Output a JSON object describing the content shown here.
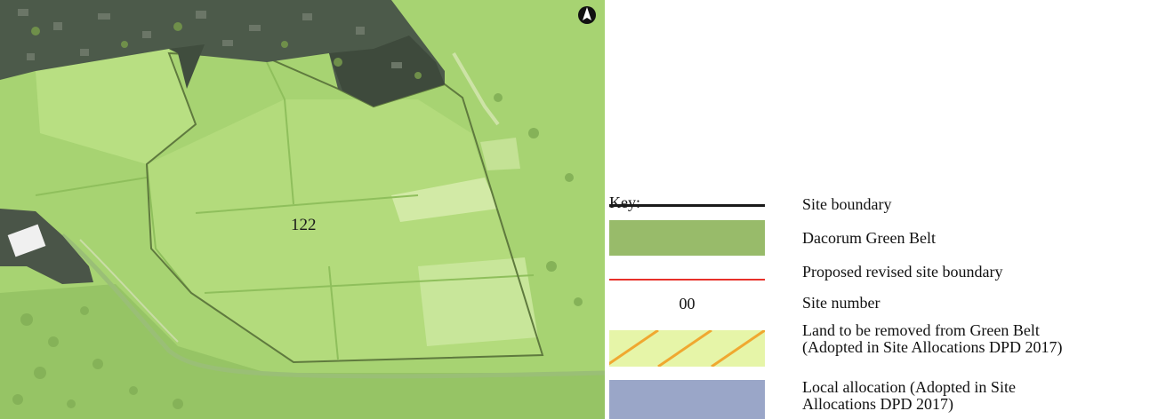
{
  "map": {
    "site_label": "122",
    "north_arrow": "north-arrow-icon",
    "colors": {
      "green_belt": "#a8d473",
      "urban": "#4a5548",
      "field_light": "#bde28c"
    }
  },
  "key": {
    "title": "Key:",
    "items": [
      {
        "label": "Site boundary",
        "color": "#1a1a1a"
      },
      {
        "label": "Dacorum Green Belt",
        "color": "#98bb6a"
      },
      {
        "label": "Proposed revised site boundary",
        "color": "#e8312a"
      },
      {
        "label": "Site number",
        "sample": "00"
      },
      {
        "label_line1": "Land to be removed from Green Belt",
        "label_line2": "(Adopted in Site Allocations DPD 2017)",
        "color": "#e6f5a8",
        "hatch_color": "#f0a830"
      },
      {
        "label_line1": "Local allocation (Adopted in Site",
        "label_line2": "Allocations DPD 2017)",
        "color": "#9aa6c8"
      }
    ]
  }
}
